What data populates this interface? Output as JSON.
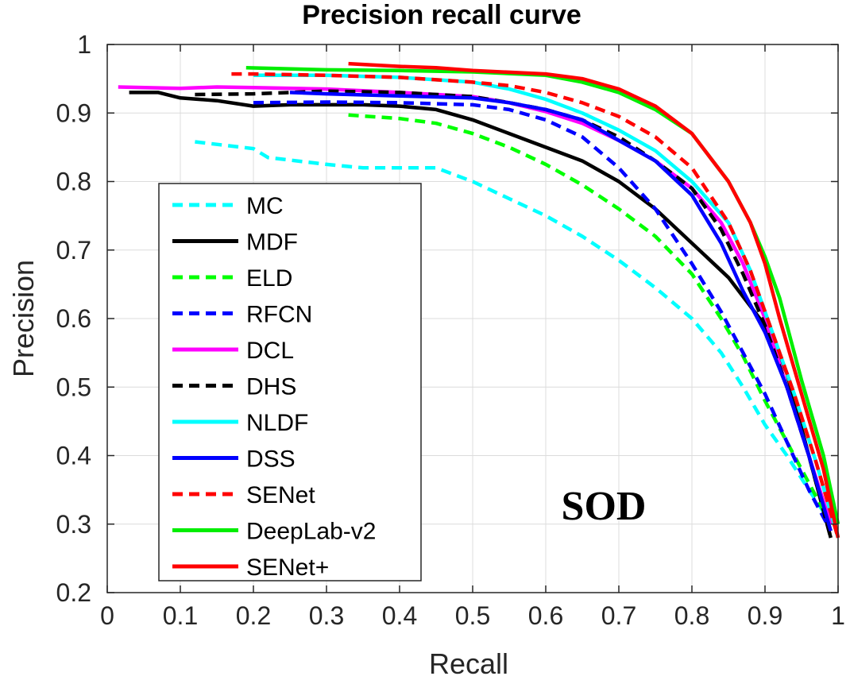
{
  "chart_data": {
    "type": "line",
    "title": "Precision recall curve",
    "xlabel": "Recall",
    "ylabel": "Precision",
    "xlim": [
      0,
      1
    ],
    "ylim": [
      0.2,
      1
    ],
    "xticks": [
      "0",
      "0.1",
      "0.2",
      "0.3",
      "0.4",
      "0.5",
      "0.6",
      "0.7",
      "0.8",
      "0.9",
      "1"
    ],
    "yticks": [
      "0.2",
      "0.3",
      "0.4",
      "0.5",
      "0.6",
      "0.7",
      "0.8",
      "0.9",
      "1"
    ],
    "grid": true,
    "legend_position": "left",
    "annotation": "SOD",
    "series": [
      {
        "name": "MC",
        "color": "#00ffff",
        "dash": true,
        "x": [
          0.12,
          0.2,
          0.22,
          0.3,
          0.35,
          0.45,
          0.5,
          0.55,
          0.6,
          0.65,
          0.7,
          0.75,
          0.8,
          0.84,
          0.87,
          0.9,
          0.93,
          0.96,
          0.985
        ],
        "y": [
          0.858,
          0.848,
          0.835,
          0.825,
          0.82,
          0.82,
          0.8,
          0.775,
          0.75,
          0.72,
          0.685,
          0.645,
          0.6,
          0.55,
          0.5,
          0.445,
          0.4,
          0.35,
          0.31
        ]
      },
      {
        "name": "MDF",
        "color": "#000000",
        "dash": false,
        "x": [
          0.03,
          0.07,
          0.1,
          0.15,
          0.2,
          0.25,
          0.3,
          0.35,
          0.4,
          0.45,
          0.5,
          0.55,
          0.6,
          0.65,
          0.7,
          0.75,
          0.8,
          0.85,
          0.9,
          0.93,
          0.96,
          0.99
        ],
        "y": [
          0.93,
          0.93,
          0.922,
          0.918,
          0.91,
          0.912,
          0.912,
          0.912,
          0.91,
          0.905,
          0.89,
          0.87,
          0.85,
          0.83,
          0.8,
          0.76,
          0.71,
          0.66,
          0.59,
          0.52,
          0.4,
          0.28
        ]
      },
      {
        "name": "ELD",
        "color": "#00ff00",
        "dash": true,
        "x": [
          0.33,
          0.4,
          0.45,
          0.5,
          0.55,
          0.6,
          0.65,
          0.7,
          0.75,
          0.8,
          0.84,
          0.87,
          0.9,
          0.93,
          0.96,
          0.99
        ],
        "y": [
          0.897,
          0.892,
          0.885,
          0.87,
          0.85,
          0.825,
          0.795,
          0.76,
          0.72,
          0.665,
          0.6,
          0.545,
          0.48,
          0.42,
          0.36,
          0.3
        ]
      },
      {
        "name": "RFCN",
        "color": "#0000ff",
        "dash": true,
        "x": [
          0.2,
          0.3,
          0.4,
          0.5,
          0.55,
          0.6,
          0.65,
          0.7,
          0.75,
          0.8,
          0.84,
          0.87,
          0.9,
          0.93,
          0.96,
          0.985
        ],
        "y": [
          0.915,
          0.916,
          0.915,
          0.912,
          0.905,
          0.89,
          0.865,
          0.82,
          0.76,
          0.68,
          0.61,
          0.55,
          0.49,
          0.42,
          0.35,
          0.3
        ]
      },
      {
        "name": "DCL",
        "color": "#ff00ff",
        "dash": false,
        "x": [
          0.015,
          0.1,
          0.15,
          0.2,
          0.3,
          0.4,
          0.5,
          0.55,
          0.6,
          0.65,
          0.7,
          0.75,
          0.8,
          0.84,
          0.87,
          0.9,
          0.93,
          0.96,
          0.99
        ],
        "y": [
          0.938,
          0.936,
          0.938,
          0.937,
          0.935,
          0.93,
          0.924,
          0.915,
          0.902,
          0.885,
          0.86,
          0.83,
          0.79,
          0.74,
          0.68,
          0.6,
          0.5,
          0.4,
          0.3
        ]
      },
      {
        "name": "DHS",
        "color": "#000000",
        "dash": true,
        "x": [
          0.12,
          0.2,
          0.3,
          0.4,
          0.5,
          0.55,
          0.6,
          0.65,
          0.7,
          0.75,
          0.8,
          0.84,
          0.87,
          0.9,
          0.93,
          0.96,
          0.99
        ],
        "y": [
          0.927,
          0.928,
          0.932,
          0.93,
          0.924,
          0.915,
          0.905,
          0.89,
          0.865,
          0.83,
          0.79,
          0.73,
          0.665,
          0.59,
          0.5,
          0.4,
          0.28
        ]
      },
      {
        "name": "NLDF",
        "color": "#00ffff",
        "dash": false,
        "x": [
          0.2,
          0.3,
          0.4,
          0.5,
          0.55,
          0.6,
          0.65,
          0.7,
          0.75,
          0.8,
          0.85,
          0.88,
          0.91,
          0.94,
          0.97,
          1.0
        ],
        "y": [
          0.955,
          0.955,
          0.952,
          0.945,
          0.935,
          0.92,
          0.9,
          0.875,
          0.845,
          0.8,
          0.74,
          0.67,
          0.58,
          0.49,
          0.39,
          0.28
        ]
      },
      {
        "name": "DSS",
        "color": "#0000ff",
        "dash": false,
        "x": [
          0.25,
          0.3,
          0.4,
          0.5,
          0.55,
          0.6,
          0.65,
          0.7,
          0.75,
          0.8,
          0.84,
          0.87,
          0.9,
          0.93,
          0.96,
          0.99
        ],
        "y": [
          0.93,
          0.928,
          0.925,
          0.922,
          0.915,
          0.905,
          0.89,
          0.86,
          0.83,
          0.78,
          0.71,
          0.64,
          0.58,
          0.5,
          0.4,
          0.29
        ]
      },
      {
        "name": "SENet",
        "color": "#ff0000",
        "dash": true,
        "x": [
          0.17,
          0.2,
          0.3,
          0.4,
          0.5,
          0.55,
          0.6,
          0.65,
          0.7,
          0.75,
          0.8,
          0.85,
          0.88,
          0.91,
          0.94,
          0.97,
          1.0
        ],
        "y": [
          0.957,
          0.957,
          0.955,
          0.952,
          0.945,
          0.94,
          0.93,
          0.915,
          0.895,
          0.865,
          0.82,
          0.74,
          0.67,
          0.58,
          0.49,
          0.39,
          0.28
        ]
      },
      {
        "name": "DeepLab-v2",
        "color": "#00ee00",
        "dash": false,
        "x": [
          0.19,
          0.3,
          0.4,
          0.5,
          0.6,
          0.65,
          0.7,
          0.75,
          0.8,
          0.85,
          0.88,
          0.9,
          0.92,
          0.95,
          0.98,
          1.0
        ],
        "y": [
          0.966,
          0.963,
          0.962,
          0.96,
          0.955,
          0.945,
          0.93,
          0.905,
          0.87,
          0.8,
          0.74,
          0.69,
          0.63,
          0.51,
          0.4,
          0.3
        ]
      },
      {
        "name": "SENet+",
        "color": "#ff0000",
        "dash": false,
        "x": [
          0.33,
          0.4,
          0.45,
          0.5,
          0.6,
          0.65,
          0.7,
          0.75,
          0.8,
          0.85,
          0.88,
          0.9,
          0.92,
          0.95,
          0.98,
          1.0
        ],
        "y": [
          0.972,
          0.968,
          0.966,
          0.962,
          0.957,
          0.95,
          0.935,
          0.91,
          0.87,
          0.8,
          0.74,
          0.68,
          0.6,
          0.49,
          0.38,
          0.28
        ]
      }
    ]
  }
}
